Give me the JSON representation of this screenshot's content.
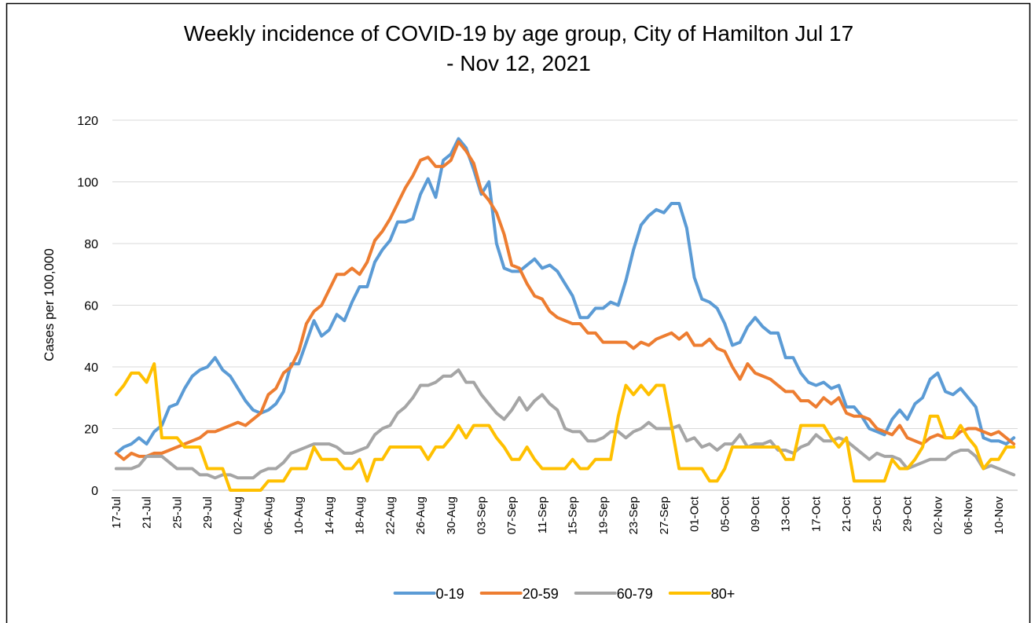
{
  "chart_data": {
    "type": "line",
    "title": "Weekly incidence of COVID-19 by age group, City of Hamilton Jul 17 - Nov 12, 2021",
    "y_label": "Cases per 100,000",
    "categories": [
      "17-Jul",
      null,
      null,
      null,
      "21-Jul",
      null,
      null,
      null,
      "25-Jul",
      null,
      null,
      null,
      "29-Jul",
      null,
      null,
      null,
      "02-Aug",
      null,
      null,
      null,
      "06-Aug",
      null,
      null,
      null,
      "10-Aug",
      null,
      null,
      null,
      "14-Aug",
      null,
      null,
      null,
      "18-Aug",
      null,
      null,
      null,
      "22-Aug",
      null,
      null,
      null,
      "26-Aug",
      null,
      null,
      null,
      "30-Aug",
      null,
      null,
      null,
      "03-Sep",
      null,
      null,
      null,
      "07-Sep",
      null,
      null,
      null,
      "11-Sep",
      null,
      null,
      null,
      "15-Sep",
      null,
      null,
      null,
      "19-Sep",
      null,
      null,
      null,
      "23-Sep",
      null,
      null,
      null,
      "27-Sep",
      null,
      null,
      null,
      "01-Oct",
      null,
      null,
      null,
      "05-Oct",
      null,
      null,
      null,
      "09-Oct",
      null,
      null,
      null,
      "13-Oct",
      null,
      null,
      null,
      "17-Oct",
      null,
      null,
      null,
      "21-Oct",
      null,
      null,
      null,
      "25-Oct",
      null,
      null,
      null,
      "29-Oct",
      null,
      null,
      null,
      "02-Nov",
      null,
      null,
      null,
      "06-Nov",
      null,
      null,
      null,
      "10-Nov",
      null,
      null
    ],
    "series": [
      {
        "name": "0-19",
        "color": "#5b9bd5",
        "values": [
          12,
          14,
          15,
          17,
          15,
          19,
          21,
          27,
          28,
          33,
          37,
          39,
          40,
          43,
          39,
          37,
          33,
          29,
          26,
          25,
          26,
          28,
          32,
          41,
          41,
          48,
          55,
          50,
          52,
          57,
          55,
          61,
          66,
          66,
          74,
          78,
          81,
          87,
          87,
          88,
          96,
          101,
          95,
          107,
          109,
          114,
          111,
          104,
          96,
          100,
          80,
          72,
          71,
          71,
          73,
          75,
          72,
          73,
          71,
          67,
          63,
          56,
          56,
          59,
          59,
          61,
          60,
          68,
          78,
          86,
          89,
          91,
          90,
          93,
          93,
          85,
          69,
          62,
          61,
          59,
          54,
          47,
          48,
          53,
          56,
          53,
          51,
          51,
          43,
          43,
          38,
          35,
          34,
          35,
          33,
          34,
          27,
          27,
          24,
          20,
          19,
          18,
          23,
          26,
          23,
          28,
          30,
          36,
          38,
          32,
          31,
          33,
          30,
          27,
          17,
          16,
          16,
          15,
          17
        ]
      },
      {
        "name": "20-59",
        "color": "#ed7d31",
        "values": [
          12,
          10,
          12,
          11,
          11,
          12,
          12,
          13,
          14,
          15,
          16,
          17,
          19,
          19,
          20,
          21,
          22,
          21,
          23,
          25,
          31,
          33,
          38,
          40,
          45,
          54,
          58,
          60,
          65,
          70,
          70,
          72,
          70,
          74,
          81,
          84,
          88,
          93,
          98,
          102,
          107,
          108,
          105,
          105,
          107,
          113,
          110,
          106,
          97,
          94,
          90,
          83,
          73,
          72,
          67,
          63,
          62,
          58,
          56,
          55,
          54,
          54,
          51,
          51,
          48,
          48,
          48,
          48,
          46,
          48,
          47,
          49,
          50,
          51,
          49,
          51,
          47,
          47,
          49,
          46,
          45,
          40,
          36,
          41,
          38,
          37,
          36,
          34,
          32,
          32,
          29,
          29,
          27,
          30,
          28,
          30,
          25,
          24,
          24,
          23,
          20,
          19,
          18,
          21,
          17,
          16,
          15,
          17,
          18,
          17,
          17,
          19,
          20,
          20,
          19,
          18,
          19,
          17,
          15
        ]
      },
      {
        "name": "60-79",
        "color": "#a5a5a5",
        "values": [
          7,
          7,
          7,
          8,
          11,
          11,
          11,
          9,
          7,
          7,
          7,
          5,
          5,
          4,
          5,
          5,
          4,
          4,
          4,
          6,
          7,
          7,
          9,
          12,
          13,
          14,
          15,
          15,
          15,
          14,
          12,
          12,
          13,
          14,
          18,
          20,
          21,
          25,
          27,
          30,
          34,
          34,
          35,
          37,
          37,
          39,
          35,
          35,
          31,
          28,
          25,
          23,
          26,
          30,
          26,
          29,
          31,
          28,
          26,
          20,
          19,
          19,
          16,
          16,
          17,
          19,
          19,
          17,
          19,
          20,
          22,
          20,
          20,
          20,
          21,
          16,
          17,
          14,
          15,
          13,
          15,
          15,
          18,
          14,
          15,
          15,
          16,
          13,
          13,
          12,
          14,
          15,
          18,
          16,
          16,
          17,
          16,
          14,
          12,
          10,
          12,
          11,
          11,
          10,
          7,
          8,
          9,
          10,
          10,
          10,
          12,
          13,
          13,
          11,
          7,
          8,
          7,
          6,
          5
        ]
      },
      {
        "name": "80+",
        "color": "#ffc000",
        "values": [
          31,
          34,
          38,
          38,
          35,
          41,
          17,
          17,
          17,
          14,
          14,
          14,
          7,
          7,
          7,
          0,
          0,
          0,
          0,
          0,
          3,
          3,
          3,
          7,
          7,
          7,
          14,
          10,
          10,
          10,
          7,
          7,
          10,
          3,
          10,
          10,
          14,
          14,
          14,
          14,
          14,
          10,
          14,
          14,
          17,
          21,
          17,
          21,
          21,
          21,
          17,
          14,
          10,
          10,
          14,
          10,
          7,
          7,
          7,
          7,
          10,
          7,
          7,
          10,
          10,
          10,
          24,
          34,
          31,
          34,
          31,
          34,
          34,
          21,
          7,
          7,
          7,
          7,
          3,
          3,
          7,
          14,
          14,
          14,
          14,
          14,
          14,
          14,
          10,
          10,
          21,
          21,
          21,
          21,
          17,
          14,
          17,
          3,
          3,
          3,
          3,
          3,
          10,
          7,
          7,
          10,
          14,
          24,
          24,
          17,
          17,
          21,
          17,
          14,
          7,
          10,
          10,
          14,
          14
        ]
      }
    ],
    "ylim": [
      0,
      120
    ],
    "yticks": [
      0,
      20,
      40,
      60,
      80,
      100,
      120
    ],
    "grid": true,
    "legend": "bottom"
  }
}
